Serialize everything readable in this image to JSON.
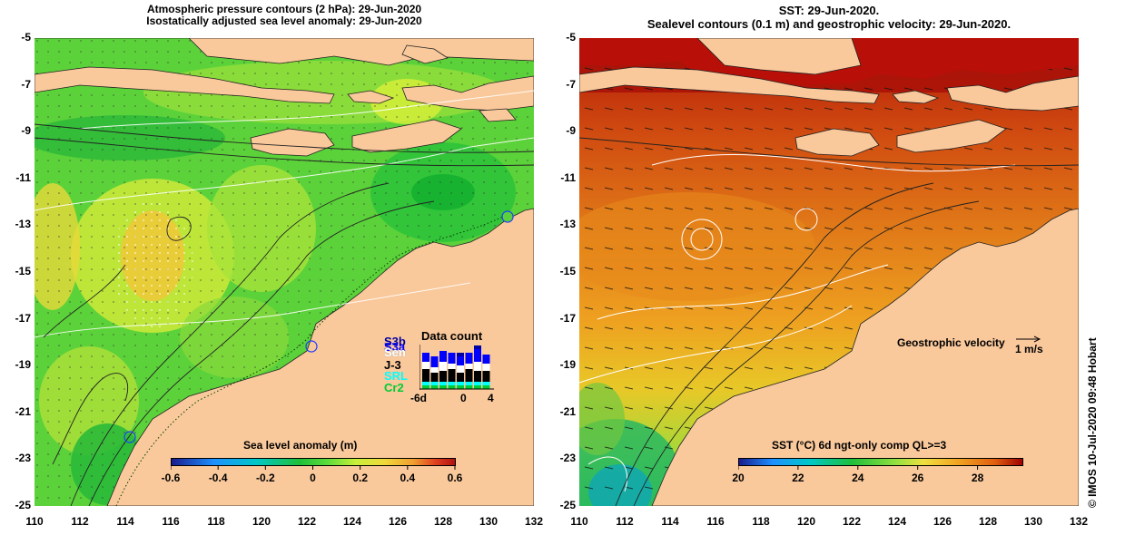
{
  "left_panel": {
    "title_line1": "Atmospheric pressure contours (2 hPa): 29-Jun-2020",
    "title_line2": "Isostatically adjusted sea level anomaly: 29-Jun-2020",
    "colorbar": {
      "title": "Sea level anomaly (m)",
      "ticks": [
        "-0.6",
        "-0.4",
        "-0.2",
        "0",
        "0.2",
        "0.4",
        "0.6"
      ],
      "range": [
        -0.6,
        0.6
      ]
    },
    "data_count": {
      "title": "Data count",
      "satellites": [
        {
          "label": "S3b",
          "color": "#0000a0"
        },
        {
          "label": "S3a",
          "color": "#0000ff"
        },
        {
          "label": "Sen",
          "color": "#ffffff"
        },
        {
          "label": "J-3",
          "color": "#000000"
        },
        {
          "label": "SRL",
          "color": "#00ffff"
        },
        {
          "label": "Cr2",
          "color": "#00cc33"
        }
      ],
      "x_ticks": [
        "-6d",
        "0",
        "4"
      ]
    }
  },
  "right_panel": {
    "title_line1": "SST: 29-Jun-2020.",
    "title_line2": "Sealevel contours (0.1 m) and geostrophic velocity: 29-Jun-2020.",
    "colorbar": {
      "title": "SST (°C) 6d ngt-only comp QL>=3",
      "ticks": [
        "20",
        "22",
        "24",
        "26",
        "28"
      ],
      "range": [
        20,
        29.5
      ]
    },
    "velocity_key_label": "Geostrophic velocity",
    "velocity_key_unit": "1 m/s"
  },
  "axes": {
    "y_ticks": [
      "-5",
      "-7",
      "-9",
      "-11",
      "-13",
      "-15",
      "-17",
      "-19",
      "-21",
      "-23",
      "-25"
    ],
    "x_ticks": [
      "110",
      "112",
      "114",
      "116",
      "118",
      "120",
      "122",
      "124",
      "126",
      "128",
      "130",
      "132"
    ],
    "lon_range": [
      110,
      132
    ],
    "lat_range": [
      -5,
      -25
    ]
  },
  "credit": "© IMOS 10-Jul-2020 09:48 Hobart",
  "colors": {
    "land": "#f9c89b",
    "sla_colormap": [
      "#1a1a8c",
      "#1e90ff",
      "#00c8c8",
      "#1fbf3a",
      "#5cdc3a",
      "#c8f03a",
      "#f0d83a",
      "#f0a030",
      "#e04020",
      "#b01010"
    ],
    "sst_colormap": [
      "#1a1a8c",
      "#1e90ff",
      "#00c8c8",
      "#1fbf3a",
      "#90e040",
      "#f0e040",
      "#f0a020",
      "#e06010",
      "#c02010",
      "#a00000"
    ]
  }
}
